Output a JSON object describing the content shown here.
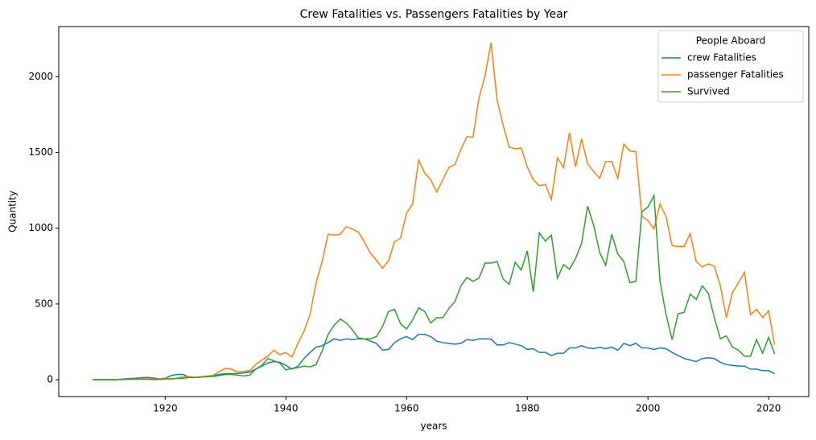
{
  "chart_data": {
    "type": "line",
    "title": "Crew Fatalities vs. Passengers Fatalities by Year",
    "x_label": "years",
    "y_label": "Quantity",
    "legend_title": "People Aboard",
    "legend_position": "upper right",
    "xlim": [
      1902.35,
      2026.65
    ],
    "ylim": [
      -111,
      2331
    ],
    "xticks": [
      1920,
      1940,
      1960,
      1980,
      2000,
      2020
    ],
    "yticks": [
      0,
      500,
      1000,
      1500,
      2000
    ],
    "x": [
      1908,
      1909,
      1910,
      1911,
      1912,
      1913,
      1914,
      1915,
      1916,
      1917,
      1918,
      1919,
      1920,
      1921,
      1922,
      1923,
      1924,
      1925,
      1926,
      1927,
      1928,
      1929,
      1930,
      1931,
      1932,
      1933,
      1934,
      1935,
      1936,
      1937,
      1938,
      1939,
      1940,
      1941,
      1942,
      1943,
      1944,
      1945,
      1946,
      1947,
      1948,
      1949,
      1950,
      1951,
      1952,
      1953,
      1954,
      1955,
      1956,
      1957,
      1958,
      1959,
      1960,
      1961,
      1962,
      1963,
      1964,
      1965,
      1966,
      1967,
      1968,
      1969,
      1970,
      1971,
      1972,
      1973,
      1974,
      1975,
      1976,
      1977,
      1978,
      1979,
      1980,
      1981,
      1982,
      1983,
      1984,
      1985,
      1986,
      1987,
      1988,
      1989,
      1990,
      1991,
      1992,
      1993,
      1994,
      1995,
      1996,
      1997,
      1998,
      1999,
      2000,
      2001,
      2002,
      2003,
      2004,
      2005,
      2006,
      2007,
      2008,
      2009,
      2010,
      2011,
      2012,
      2013,
      2014,
      2015,
      2016,
      2017,
      2018,
      2019,
      2020,
      2021
    ],
    "series": [
      {
        "name": "crew Fatalities",
        "color": "#1f77b4",
        "values": [
          1,
          1,
          1,
          2,
          2,
          5,
          8,
          10,
          14,
          15,
          12,
          5,
          10,
          28,
          35,
          35,
          15,
          15,
          18,
          22,
          28,
          35,
          40,
          40,
          40,
          45,
          50,
          70,
          90,
          110,
          120,
          115,
          95,
          70,
          90,
          140,
          180,
          215,
          225,
          245,
          270,
          260,
          270,
          265,
          270,
          270,
          255,
          240,
          195,
          200,
          245,
          270,
          285,
          265,
          300,
          300,
          285,
          255,
          245,
          240,
          235,
          240,
          265,
          260,
          270,
          270,
          268,
          230,
          230,
          245,
          235,
          225,
          200,
          205,
          180,
          180,
          160,
          175,
          175,
          210,
          210,
          225,
          210,
          205,
          215,
          205,
          215,
          195,
          240,
          225,
          240,
          210,
          210,
          200,
          210,
          205,
          180,
          160,
          140,
          130,
          120,
          140,
          145,
          140,
          115,
          100,
          95,
          90,
          90,
          70,
          70,
          60,
          60,
          40
        ]
      },
      {
        "name": "passenger Fatalities",
        "color": "#ff7f0e",
        "values": [
          1,
          0,
          1,
          1,
          2,
          3,
          4,
          5,
          5,
          5,
          3,
          5,
          12,
          5,
          10,
          20,
          20,
          15,
          20,
          25,
          30,
          55,
          75,
          70,
          50,
          55,
          60,
          100,
          130,
          155,
          195,
          165,
          180,
          150,
          240,
          320,
          430,
          640,
          780,
          960,
          955,
          960,
          1010,
          995,
          975,
          910,
          835,
          790,
          735,
          785,
          910,
          935,
          1100,
          1160,
          1450,
          1365,
          1320,
          1240,
          1320,
          1400,
          1420,
          1520,
          1605,
          1600,
          1860,
          2005,
          2225,
          1845,
          1680,
          1535,
          1525,
          1530,
          1405,
          1320,
          1280,
          1290,
          1190,
          1465,
          1400,
          1630,
          1405,
          1590,
          1425,
          1375,
          1330,
          1440,
          1440,
          1330,
          1555,
          1510,
          1505,
          1080,
          1050,
          995,
          1160,
          1075,
          885,
          880,
          880,
          965,
          780,
          745,
          765,
          750,
          620,
          410,
          575,
          640,
          710,
          430,
          465,
          410,
          455,
          230
        ]
      },
      {
        "name": "Survived",
        "color": "#2ca02c",
        "values": [
          0,
          0,
          0,
          0,
          0,
          2,
          3,
          3,
          3,
          3,
          2,
          2,
          5,
          5,
          10,
          10,
          15,
          15,
          18,
          20,
          22,
          28,
          35,
          35,
          30,
          25,
          30,
          70,
          95,
          140,
          125,
          110,
          65,
          75,
          80,
          90,
          85,
          100,
          190,
          300,
          360,
          400,
          375,
          330,
          275,
          270,
          270,
          285,
          350,
          450,
          465,
          370,
          335,
          395,
          475,
          450,
          375,
          410,
          410,
          470,
          515,
          620,
          675,
          650,
          670,
          770,
          770,
          780,
          665,
          630,
          775,
          725,
          850,
          580,
          970,
          915,
          955,
          670,
          760,
          730,
          800,
          900,
          1145,
          1020,
          840,
          755,
          960,
          830,
          780,
          640,
          650,
          1110,
          1140,
          1215,
          650,
          430,
          265,
          435,
          445,
          565,
          530,
          620,
          570,
          410,
          270,
          290,
          215,
          195,
          155,
          155,
          265,
          175,
          280,
          170
        ]
      }
    ]
  }
}
